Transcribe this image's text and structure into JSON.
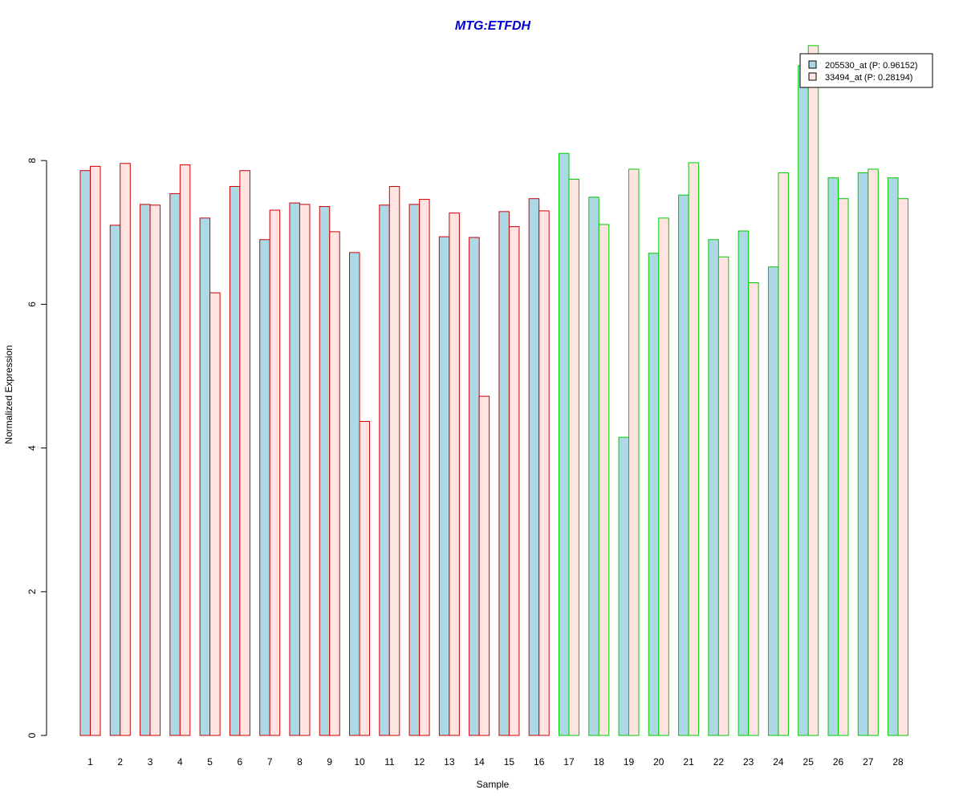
{
  "chart_data": {
    "type": "bar",
    "title": "MTG:ETFDH",
    "xlabel": "Sample",
    "ylabel": "Normalized Expression",
    "ylim": [
      0,
      10
    ],
    "yticks": [
      0,
      2,
      4,
      6,
      8
    ],
    "grid": false,
    "legend_position": "top-right",
    "categories": [
      "1",
      "2",
      "3",
      "4",
      "5",
      "6",
      "7",
      "8",
      "9",
      "10",
      "11",
      "12",
      "13",
      "14",
      "15",
      "16",
      "17",
      "18",
      "19",
      "20",
      "21",
      "22",
      "23",
      "24",
      "25",
      "26",
      "27",
      "28"
    ],
    "group_border_colors": [
      "#cc0000",
      "#cc0000",
      "#cc0000",
      "#cc0000",
      "#cc0000",
      "#cc0000",
      "#cc0000",
      "#cc0000",
      "#cc0000",
      "#cc0000",
      "#cc0000",
      "#cc0000",
      "#cc0000",
      "#cc0000",
      "#cc0000",
      "#cc0000",
      "#00cc00",
      "#00cc00",
      "#00cc00",
      "#00cc00",
      "#00cc00",
      "#00cc00",
      "#00cc00",
      "#00cc00",
      "#00cc00",
      "#00cc00",
      "#00cc00",
      "#00cc00"
    ],
    "series": [
      {
        "name": "205530_at (P: 0.96152)",
        "fill": "#add8e6",
        "values": [
          7.86,
          7.1,
          7.39,
          7.54,
          7.2,
          7.64,
          6.9,
          7.41,
          7.36,
          6.72,
          7.38,
          7.39,
          6.94,
          6.93,
          7.29,
          7.47,
          8.1,
          7.49,
          4.15,
          6.71,
          7.52,
          6.9,
          7.02,
          6.52,
          9.32,
          7.76,
          7.83,
          7.76
        ]
      },
      {
        "name": "33494_at (P: 0.28194)",
        "fill": "#ffe4e1",
        "values": [
          7.92,
          7.96,
          7.38,
          7.94,
          6.16,
          7.86,
          7.31,
          7.39,
          7.01,
          4.37,
          7.64,
          7.46,
          7.27,
          4.72,
          7.08,
          7.3,
          7.74,
          7.11,
          7.88,
          7.2,
          7.97,
          6.66,
          6.3,
          7.83,
          9.6,
          7.47,
          7.88,
          7.47
        ]
      }
    ]
  },
  "colors": {
    "title": "#0000cc"
  }
}
